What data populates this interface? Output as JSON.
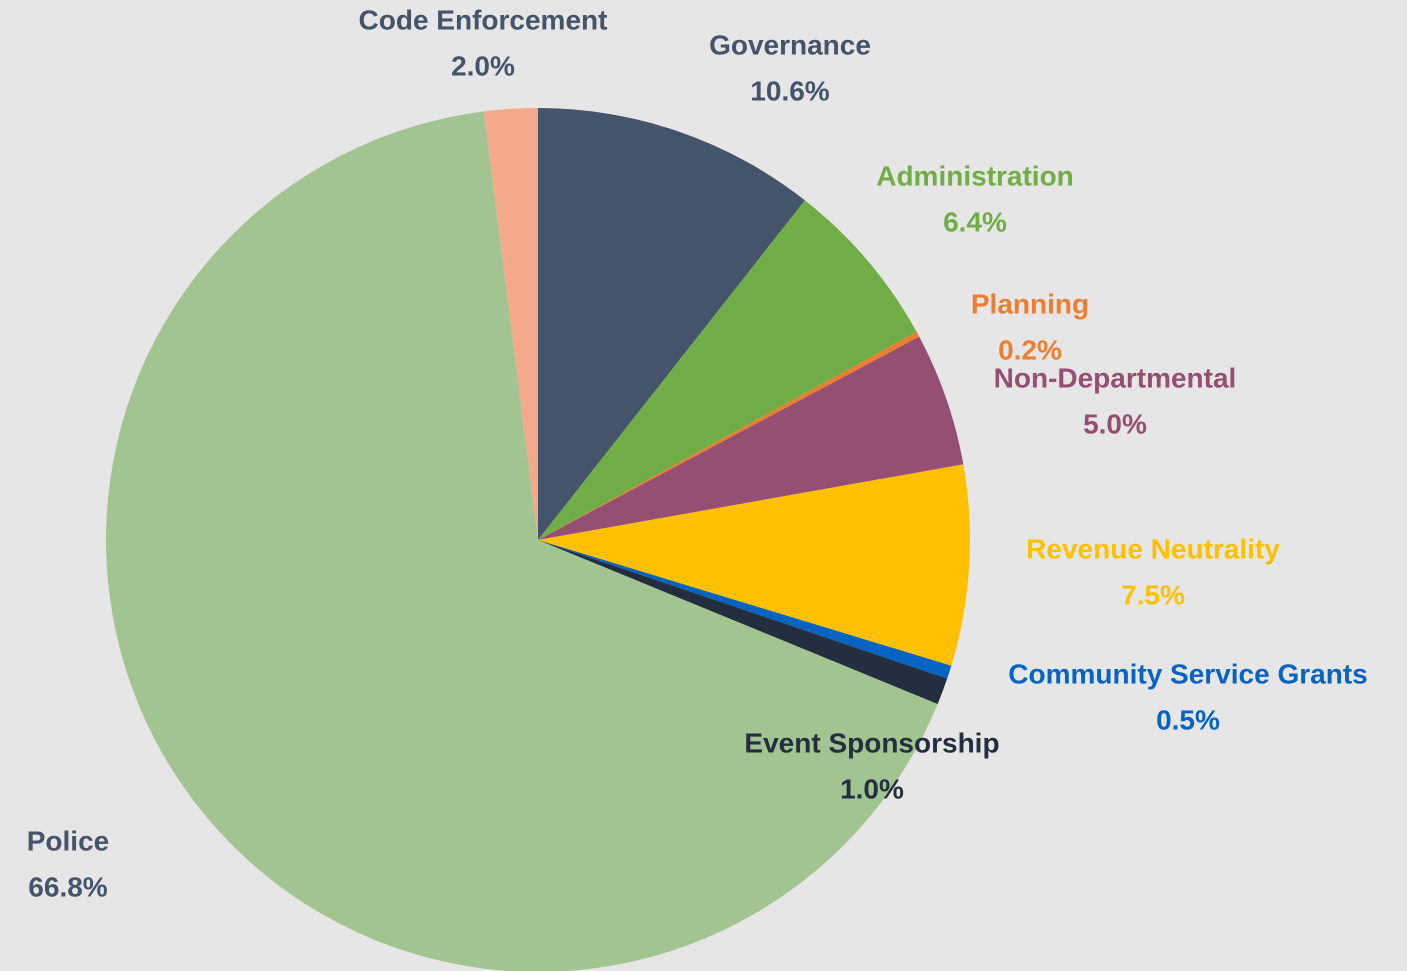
{
  "chart_data": {
    "type": "pie",
    "categories": [
      "Governance",
      "Administration",
      "Planning",
      "Non-Departmental",
      "Revenue Neutrality",
      "Community Service Grants",
      "Event Sponsorship",
      "Police",
      "Code Enforcement"
    ],
    "values": [
      10.6,
      6.4,
      0.2,
      5.0,
      7.5,
      0.5,
      1.0,
      66.8,
      2.0
    ],
    "value_labels": [
      "10.6%",
      "6.4%",
      "0.2%",
      "5.0%",
      "7.5%",
      "0.5%",
      "1.0%",
      "66.8%",
      "2.0%"
    ],
    "colors": [
      "#44546a",
      "#70ad47",
      "#ed7d31",
      "#954f72",
      "#ffc000",
      "#0563c1",
      "#232f3e",
      "#a2c490",
      "#f4a98a"
    ]
  }
}
